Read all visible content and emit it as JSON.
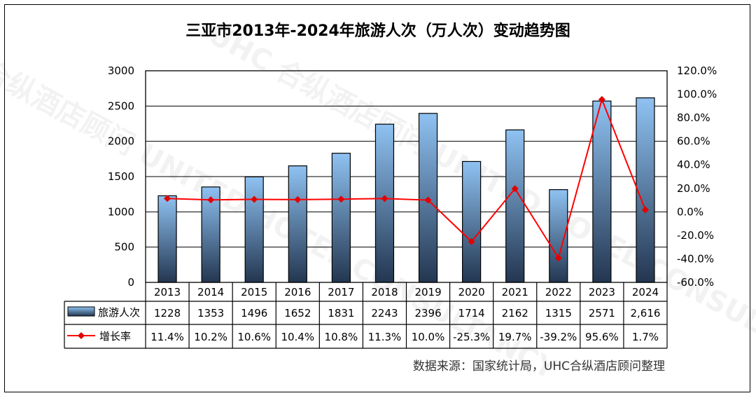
{
  "title": "三亚市2013年-2024年旅游人次（万人次）变动趋势图",
  "source": "数据来源：国家统计局，UHC合纵酒店顾问整理",
  "watermark": "UHC 合纵酒店顾问 UNITED HOTEL CONSULTANCY",
  "colors": {
    "bar_top": "#8fc2f2",
    "bar_bottom": "#233650",
    "line": "#ff0000",
    "marker": "#e00000"
  },
  "chart_data": {
    "type": "bar",
    "categories": [
      "2013",
      "2014",
      "2015",
      "2016",
      "2017",
      "2018",
      "2019",
      "2020",
      "2021",
      "2022",
      "2023",
      "2024"
    ],
    "series": [
      {
        "name": "旅游人次",
        "type": "bar",
        "axis": "left",
        "values": [
          1228,
          1353,
          1496,
          1652,
          1831,
          2243,
          2396,
          1714,
          2162,
          1315,
          2571,
          2616
        ],
        "labels": [
          "1228",
          "1353",
          "1496",
          "1652",
          "1831",
          "2243",
          "2396",
          "1714",
          "2162",
          "1315",
          "2571",
          "2,616"
        ]
      },
      {
        "name": "增长率",
        "type": "line",
        "axis": "right",
        "values": [
          11.4,
          10.2,
          10.6,
          10.4,
          10.8,
          11.3,
          10.0,
          -25.3,
          19.7,
          -39.2,
          95.6,
          1.7
        ],
        "labels": [
          "11.4%",
          "10.2%",
          "10.6%",
          "10.4%",
          "10.8%",
          "11.3%",
          "10.0%",
          "-25.3%",
          "19.7%",
          "-39.2%",
          "95.6%",
          "1.7%"
        ]
      }
    ],
    "y_left": {
      "min": 0,
      "max": 3000,
      "ticks": [
        "0",
        "500",
        "1000",
        "1500",
        "2000",
        "2500",
        "3000"
      ]
    },
    "y_right": {
      "min": -60,
      "max": 120,
      "ticks": [
        "-60.0%",
        "-40.0%",
        "-20.0%",
        "0.0%",
        "20.0%",
        "40.0%",
        "60.0%",
        "80.0%",
        "100.0%",
        "120.0%"
      ]
    },
    "grid": true,
    "legend": "data-table"
  }
}
